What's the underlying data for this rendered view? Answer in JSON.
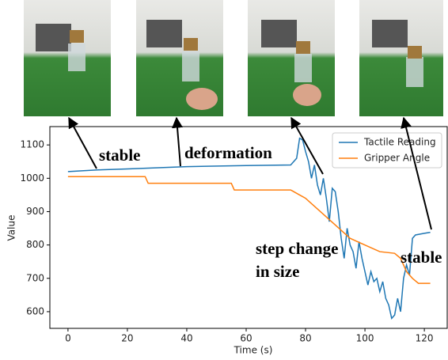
{
  "chart_data": {
    "type": "line",
    "xlabel": "Time (s)",
    "ylabel": "Value",
    "xlim": [
      -6.1,
      127.7
    ],
    "xticks": [
      0,
      20,
      40,
      60,
      80,
      100,
      120
    ],
    "ylim": [
      550,
      1155
    ],
    "yticks": [
      600,
      700,
      800,
      900,
      1000,
      1100
    ],
    "grid": false,
    "legend": "upper right",
    "annotations": [
      "stable",
      "deformation",
      "step change",
      "in size",
      "stable"
    ],
    "series": [
      {
        "name": "Tactile Reading",
        "color": "#1f77b4",
        "x": [
          0,
          10,
          20,
          40,
          60,
          75,
          77,
          78,
          79,
          80,
          81,
          82,
          83,
          84,
          85,
          86,
          87,
          88,
          89,
          90,
          91,
          92,
          93,
          94,
          95,
          96,
          97,
          98,
          99,
          100,
          101,
          102,
          103,
          104,
          105,
          106,
          107,
          108,
          109,
          110,
          111,
          112,
          113,
          114,
          115,
          116,
          117,
          120,
          122
        ],
        "values": [
          1020,
          1025,
          1028,
          1035,
          1038,
          1040,
          1060,
          1120,
          1115,
          1080,
          1050,
          1000,
          1040,
          980,
          950,
          1000,
          940,
          870,
          970,
          960,
          900,
          820,
          760,
          850,
          800,
          780,
          730,
          810,
          760,
          720,
          680,
          720,
          690,
          700,
          660,
          690,
          640,
          620,
          580,
          590,
          640,
          600,
          700,
          740,
          710,
          820,
          830,
          835,
          838
        ]
      },
      {
        "name": "Gripper Angle",
        "color": "#ff7f0e",
        "x": [
          0,
          26,
          27,
          55,
          56,
          75,
          76,
          80,
          85,
          90,
          95,
          100,
          105,
          110,
          112,
          114,
          116,
          118,
          122
        ],
        "values": [
          1005,
          1005,
          985,
          985,
          965,
          965,
          960,
          940,
          900,
          860,
          820,
          800,
          780,
          775,
          760,
          720,
          700,
          685,
          685
        ]
      }
    ]
  }
}
